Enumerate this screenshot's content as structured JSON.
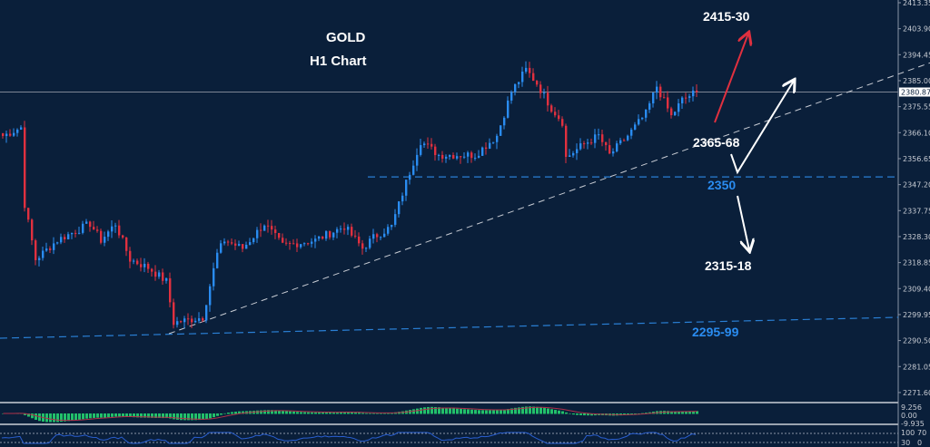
{
  "chart_data": {
    "type": "candlestick",
    "title": "GOLD",
    "subtitle": "H1 Chart",
    "ylim": [
      2267,
      2414
    ],
    "y_ticks": [
      "2413.35",
      "2403.90",
      "2394.45",
      "2385.00",
      "2375.55",
      "2366.10",
      "2356.65",
      "2347.20",
      "2337.75",
      "2328.30",
      "2318.85",
      "2309.40",
      "2299.95",
      "2290.50",
      "2281.05",
      "2271.60"
    ],
    "current_price": "2380.87",
    "approx_close_path": [
      [
        0,
        2364.9
      ],
      [
        5,
        2368
      ],
      [
        6,
        2340
      ],
      [
        9,
        2320
      ],
      [
        15,
        2327
      ],
      [
        24,
        2333
      ],
      [
        27,
        2327
      ],
      [
        31,
        2333
      ],
      [
        35,
        2320
      ],
      [
        40,
        2317
      ],
      [
        45,
        2312
      ],
      [
        47,
        2297
      ],
      [
        55,
        2299
      ],
      [
        59,
        2322
      ],
      [
        61,
        2327
      ],
      [
        66,
        2324
      ],
      [
        72,
        2333
      ],
      [
        77,
        2325
      ],
      [
        86,
        2327
      ],
      [
        94,
        2332
      ],
      [
        99,
        2324
      ],
      [
        102,
        2328
      ],
      [
        107,
        2332
      ],
      [
        111,
        2348
      ],
      [
        115,
        2363
      ],
      [
        120,
        2358
      ],
      [
        130,
        2358
      ],
      [
        136,
        2365
      ],
      [
        140,
        2381
      ],
      [
        144,
        2389
      ],
      [
        147,
        2384
      ],
      [
        151,
        2375
      ],
      [
        154,
        2370
      ],
      [
        155,
        2357
      ],
      [
        160,
        2362
      ],
      [
        164,
        2365
      ],
      [
        167,
        2358
      ],
      [
        172,
        2365
      ],
      [
        177,
        2373
      ],
      [
        180,
        2383
      ],
      [
        184,
        2372
      ],
      [
        187,
        2378
      ],
      [
        191,
        2381
      ]
    ],
    "colors": {
      "background": "#0a1f3a",
      "bull": "#2a8cf0",
      "bear": "#e0303f",
      "level_line": "#2a7fd4",
      "trendline": "#c8ccd4",
      "macd_hist": "#22c06a",
      "signal": "#b0304a",
      "rsi": "#2a5fd0"
    },
    "levels": [
      {
        "label": "2350",
        "price": 2350,
        "color": "blue"
      },
      {
        "label": "2295-99",
        "price": 2297,
        "color": "blue"
      }
    ],
    "annotations": [
      "2415-30",
      "2365-68",
      "2350",
      "2315-18",
      "2295-99"
    ],
    "trendline": {
      "from": [
        46,
        2293
      ],
      "to_price_at_axis": 2390.5
    },
    "macd": {
      "labels": [
        "9.256",
        "0.00",
        "-9.935"
      ]
    },
    "rsi": {
      "labels": [
        "100",
        "70",
        "30",
        "0"
      ]
    }
  }
}
